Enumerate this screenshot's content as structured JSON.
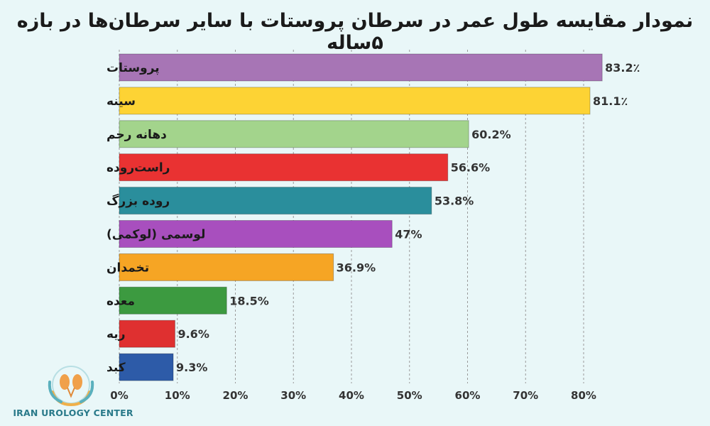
{
  "chart_data": {
    "type": "bar",
    "orientation": "horizontal",
    "title": "نمودار مقایسه طول عمر در سرطان پروستات با سایر سرطان‌ها در بازه ۵ساله",
    "categories": [
      "پروستات",
      "سینه",
      "دهانه رحم",
      "راست‌روده",
      "روده بزرگ",
      "لوسمی (لوکمی)",
      "تخمدان",
      "معده",
      "ریه",
      "کبد"
    ],
    "values": [
      83.2,
      81.1,
      60.2,
      56.6,
      53.8,
      47,
      36.9,
      18.5,
      9.6,
      9.3
    ],
    "value_labels": [
      "83.2٪",
      "81.1٪",
      "60.2%",
      "56.6%",
      "53.8%",
      "47%",
      "36.9%",
      "18.5%",
      "9.6%",
      "9.3%"
    ],
    "colors": [
      "#a775b5",
      "#fdd334",
      "#a3d48c",
      "#e93232",
      "#2a8e9c",
      "#a84fbe",
      "#f6a524",
      "#3c9a40",
      "#df3030",
      "#2d5ba8"
    ],
    "xlim": [
      0,
      80
    ],
    "xticks": [
      "0%",
      "10%",
      "20%",
      "30%",
      "40%",
      "50%",
      "60%",
      "70%",
      "80%"
    ],
    "grid": true,
    "gridline_style": "dashed"
  },
  "logo": {
    "text": "IRAN UROLOGY CENTER",
    "icon": "kidney-hands-icon"
  }
}
